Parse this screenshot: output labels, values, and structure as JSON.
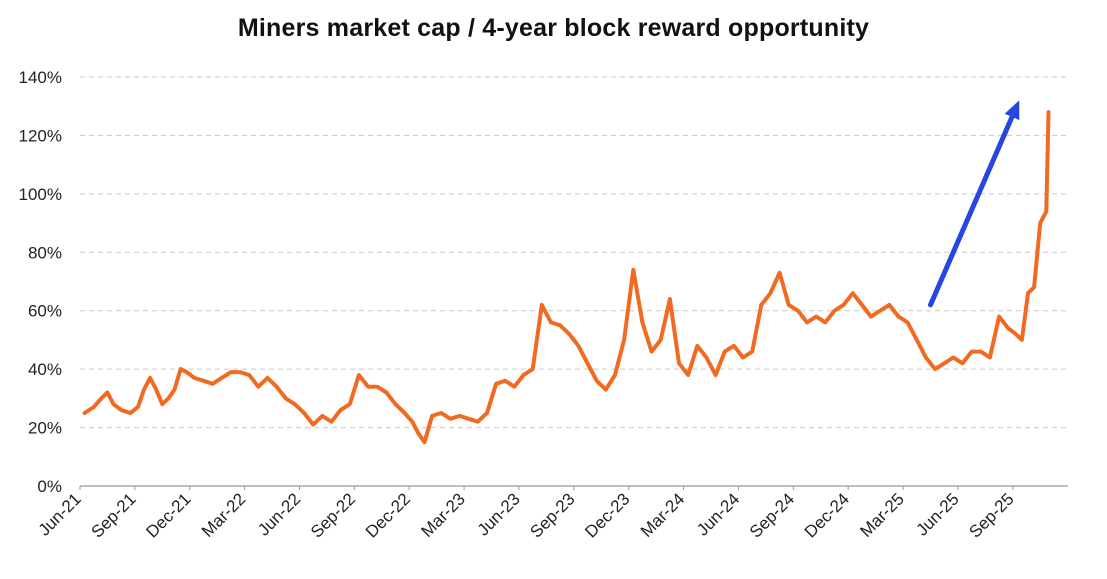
{
  "chart_data": {
    "type": "line",
    "title": "Miners market cap / 4-year block reward opportunity",
    "xlabel": "",
    "ylabel": "",
    "ylim": [
      0,
      140
    ],
    "y_tick_values": [
      0,
      20,
      40,
      60,
      80,
      100,
      120,
      140
    ],
    "y_tick_labels": [
      "0%",
      "20%",
      "40%",
      "60%",
      "80%",
      "100%",
      "120%",
      "140%"
    ],
    "x_tick_labels": [
      "Jun-21",
      "Sep-21",
      "Dec-21",
      "Mar-22",
      "Jun-22",
      "Sep-22",
      "Dec-22",
      "Mar-23",
      "Jun-23",
      "Sep-23",
      "Dec-23",
      "Mar-24",
      "Jun-24",
      "Sep-24",
      "Dec-24",
      "Mar-25",
      "Jun-25",
      "Sep-25"
    ],
    "x_range": [
      "Jun-21",
      "Nov-25"
    ],
    "grid": "horizontal dashed",
    "legend": "none",
    "annotation": "blue upward arrow (Apr-25 to Sep-25)",
    "colors": {
      "line": "#F26A21",
      "arrow": "#2746E0",
      "grid": "#C8C8C8",
      "axis": "#999999"
    },
    "series": [
      {
        "name": "",
        "x": [
          "Jun-21",
          "Jun-21",
          "Jul-21",
          "Jul-21",
          "Jul-21",
          "Aug-21",
          "Aug-21",
          "Sep-21",
          "Sep-21",
          "Sep-21",
          "Oct-21",
          "Oct-21",
          "Oct-21",
          "Nov-21",
          "Nov-21",
          "Nov-21",
          "Dec-21",
          "Dec-21",
          "Jan-22",
          "Jan-22",
          "Feb-22",
          "Feb-22",
          "Mar-22",
          "Mar-22",
          "Apr-22",
          "Apr-22",
          "May-22",
          "May-22",
          "Jun-22",
          "Jun-22",
          "Jul-22",
          "Jul-22",
          "Aug-22",
          "Aug-22",
          "Sep-22",
          "Sep-22",
          "Oct-22",
          "Oct-22",
          "Nov-22",
          "Nov-22",
          "Dec-22",
          "Dec-22",
          "Dec-22",
          "Jan-23",
          "Jan-23",
          "Feb-23",
          "Feb-23",
          "Mar-23",
          "Mar-23",
          "Apr-23",
          "Apr-23",
          "May-23",
          "May-23",
          "Jun-23",
          "Jun-23",
          "Jul-23",
          "Jul-23",
          "Aug-23",
          "Aug-23",
          "Sep-23",
          "Sep-23",
          "Oct-23",
          "Oct-23",
          "Nov-23",
          "Nov-23",
          "Dec-23",
          "Dec-23",
          "Jan-24",
          "Jan-24",
          "Feb-24",
          "Feb-24",
          "Mar-24",
          "Mar-24",
          "Apr-24",
          "Apr-24",
          "May-24",
          "May-24",
          "Jun-24",
          "Jun-24",
          "Jul-24",
          "Jul-24",
          "Aug-24",
          "Aug-24",
          "Sep-24",
          "Sep-24",
          "Oct-24",
          "Oct-24",
          "Nov-24",
          "Nov-24",
          "Dec-24",
          "Dec-24",
          "Jan-25",
          "Jan-25",
          "Feb-25",
          "Feb-25",
          "Mar-25",
          "Mar-25",
          "Apr-25",
          "Apr-25",
          "May-25",
          "May-25",
          "Jun-25",
          "Jun-25",
          "Jul-25",
          "Jul-25",
          "Aug-25",
          "Aug-25",
          "Sep-25",
          "Sep-25",
          "Sep-25",
          "Oct-25",
          "Oct-25",
          "Oct-25",
          "Nov-25"
        ],
        "values": [
          25,
          27,
          30,
          32,
          28,
          26,
          25,
          27,
          33,
          37,
          33,
          28,
          30,
          33,
          40,
          39,
          37,
          36,
          35,
          37,
          39,
          39,
          38,
          34,
          37,
          34,
          30,
          28,
          25,
          21,
          24,
          22,
          26,
          28,
          38,
          34,
          34,
          32,
          28,
          25,
          22,
          18,
          15,
          24,
          25,
          23,
          24,
          23,
          22,
          25,
          35,
          36,
          34,
          38,
          40,
          62,
          56,
          55,
          52,
          48,
          42,
          36,
          33,
          38,
          50,
          74,
          56,
          46,
          50,
          64,
          42,
          38,
          48,
          44,
          38,
          46,
          48,
          44,
          46,
          62,
          66,
          73,
          62,
          60,
          56,
          58,
          56,
          60,
          62,
          66,
          62,
          58,
          60,
          62,
          58,
          56,
          50,
          44,
          40,
          42,
          44,
          42,
          46,
          46,
          44,
          58,
          54,
          52,
          50,
          66,
          68,
          90,
          94,
          128
        ]
      }
    ]
  }
}
